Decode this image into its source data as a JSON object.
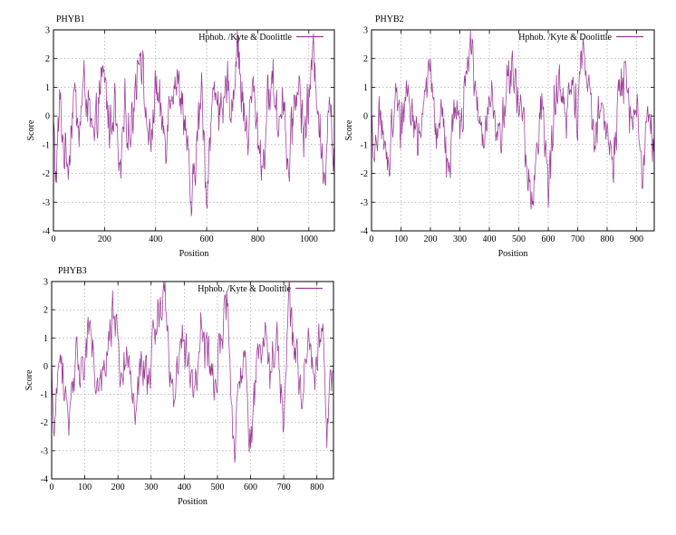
{
  "chart_data": [
    {
      "type": "line",
      "title": "PHYB1",
      "xlabel": "Position",
      "ylabel": "Score",
      "xlim": [
        0,
        1100
      ],
      "ylim": [
        -4,
        3
      ],
      "xticks": [
        0,
        200,
        400,
        600,
        800,
        1000
      ],
      "yticks": [
        -4,
        -3,
        -2,
        -1,
        0,
        1,
        2,
        3
      ],
      "grid": true,
      "legend_position": "top-right",
      "color": "#9b3a96",
      "series": [
        {
          "name": "Hphob. /Kyte & Doolittle",
          "length": 1100,
          "points": [
            [
              0,
              -0.3
            ],
            [
              10,
              -2.2
            ],
            [
              25,
              0.6
            ],
            [
              40,
              -1.2
            ],
            [
              60,
              -1.6
            ],
            [
              80,
              0.9
            ],
            [
              100,
              -0.6
            ],
            [
              120,
              1.2
            ],
            [
              140,
              0.1
            ],
            [
              160,
              -1.0
            ],
            [
              180,
              0.8
            ],
            [
              200,
              1.4
            ],
            [
              220,
              -0.5
            ],
            [
              240,
              0.5
            ],
            [
              260,
              -2.3
            ],
            [
              280,
              0.3
            ],
            [
              300,
              -0.8
            ],
            [
              320,
              1.0
            ],
            [
              340,
              2.6
            ],
            [
              360,
              0.2
            ],
            [
              380,
              -1.2
            ],
            [
              400,
              1.1
            ],
            [
              420,
              0.0
            ],
            [
              440,
              -0.8
            ],
            [
              460,
              1.0
            ],
            [
              480,
              1.2
            ],
            [
              500,
              0.7
            ],
            [
              520,
              -0.6
            ],
            [
              540,
              -3.3
            ],
            [
              560,
              -1.1
            ],
            [
              580,
              0.9
            ],
            [
              600,
              -2.9
            ],
            [
              620,
              0.4
            ],
            [
              640,
              1.0
            ],
            [
              660,
              -0.4
            ],
            [
              680,
              1.2
            ],
            [
              700,
              0.2
            ],
            [
              720,
              2.7
            ],
            [
              740,
              0.5
            ],
            [
              760,
              -0.8
            ],
            [
              780,
              1.1
            ],
            [
              800,
              -0.6
            ],
            [
              820,
              -1.9
            ],
            [
              840,
              0.6
            ],
            [
              860,
              1.3
            ],
            [
              880,
              -0.4
            ],
            [
              900,
              0.9
            ],
            [
              920,
              -2.2
            ],
            [
              940,
              0.3
            ],
            [
              960,
              1.2
            ],
            [
              980,
              -0.7
            ],
            [
              1000,
              0.6
            ],
            [
              1020,
              2.3
            ],
            [
              1040,
              -0.2
            ],
            [
              1060,
              -2.5
            ],
            [
              1080,
              1.1
            ],
            [
              1095,
              -1.3
            ]
          ]
        }
      ]
    },
    {
      "type": "line",
      "title": "PHYB2",
      "xlabel": "Position",
      "ylabel": "Score",
      "xlim": [
        0,
        960
      ],
      "ylim": [
        -4,
        3
      ],
      "xticks": [
        0,
        100,
        200,
        300,
        400,
        500,
        600,
        700,
        800,
        900
      ],
      "yticks": [
        -4,
        -3,
        -2,
        -1,
        0,
        1,
        2,
        3
      ],
      "grid": true,
      "legend_position": "top-right",
      "color": "#9b3a96",
      "series": [
        {
          "name": "Hphob. /Kyte & Doolittle",
          "length": 960,
          "points": [
            [
              0,
              -0.4
            ],
            [
              10,
              -2.2
            ],
            [
              25,
              0.6
            ],
            [
              40,
              -1.1
            ],
            [
              60,
              -1.6
            ],
            [
              80,
              0.9
            ],
            [
              100,
              -0.5
            ],
            [
              120,
              1.2
            ],
            [
              140,
              0.1
            ],
            [
              160,
              -1.0
            ],
            [
              180,
              0.8
            ],
            [
              200,
              1.4
            ],
            [
              220,
              -0.6
            ],
            [
              240,
              0.4
            ],
            [
              260,
              -2.3
            ],
            [
              280,
              0.3
            ],
            [
              300,
              -0.7
            ],
            [
              320,
              1.1
            ],
            [
              340,
              2.7
            ],
            [
              360,
              0.1
            ],
            [
              380,
              -1.2
            ],
            [
              400,
              1.0
            ],
            [
              420,
              0.0
            ],
            [
              440,
              -0.9
            ],
            [
              460,
              1.1
            ],
            [
              480,
              1.4
            ],
            [
              500,
              0.6
            ],
            [
              520,
              -0.7
            ],
            [
              545,
              -3.3
            ],
            [
              565,
              -1.0
            ],
            [
              580,
              0.9
            ],
            [
              600,
              -2.9
            ],
            [
              620,
              0.5
            ],
            [
              640,
              1.1
            ],
            [
              660,
              -0.3
            ],
            [
              680,
              1.2
            ],
            [
              700,
              0.1
            ],
            [
              720,
              2.6
            ],
            [
              740,
              0.4
            ],
            [
              760,
              -0.9
            ],
            [
              780,
              1.2
            ],
            [
              800,
              -0.5
            ],
            [
              820,
              -1.8
            ],
            [
              840,
              0.7
            ],
            [
              860,
              1.4
            ],
            [
              880,
              -0.4
            ],
            [
              900,
              0.8
            ],
            [
              920,
              -2.2
            ],
            [
              940,
              0.3
            ],
            [
              955,
              -1.1
            ]
          ]
        }
      ]
    },
    {
      "type": "line",
      "title": "PHYB3",
      "xlabel": "Position",
      "ylabel": "Score",
      "xlim": [
        0,
        850
      ],
      "ylim": [
        -4,
        3
      ],
      "xticks": [
        0,
        100,
        200,
        300,
        400,
        500,
        600,
        700,
        800
      ],
      "yticks": [
        -4,
        -3,
        -2,
        -1,
        0,
        1,
        2,
        3
      ],
      "grid": true,
      "legend_position": "top-right",
      "color": "#9b3a96",
      "series": [
        {
          "name": "Hphob. /Kyte & Doolittle",
          "length": 850,
          "points": [
            [
              0,
              -0.2
            ],
            [
              10,
              -2.3
            ],
            [
              25,
              0.5
            ],
            [
              40,
              -1.1
            ],
            [
              55,
              -1.9
            ],
            [
              75,
              0.9
            ],
            [
              95,
              -0.5
            ],
            [
              110,
              1.4
            ],
            [
              130,
              0.0
            ],
            [
              150,
              -1.1
            ],
            [
              170,
              0.8
            ],
            [
              190,
              2.2
            ],
            [
              210,
              -0.4
            ],
            [
              230,
              0.4
            ],
            [
              250,
              -2.3
            ],
            [
              270,
              0.4
            ],
            [
              290,
              -0.7
            ],
            [
              310,
              1.2
            ],
            [
              340,
              2.8
            ],
            [
              355,
              0.3
            ],
            [
              370,
              -1.3
            ],
            [
              390,
              1.1
            ],
            [
              410,
              0.0
            ],
            [
              430,
              -0.8
            ],
            [
              450,
              1.2
            ],
            [
              470,
              0.3
            ],
            [
              490,
              -0.7
            ],
            [
              510,
              0.9
            ],
            [
              530,
              2.2
            ],
            [
              550,
              -3.2
            ],
            [
              565,
              -1.2
            ],
            [
              580,
              0.9
            ],
            [
              600,
              -3.0
            ],
            [
              620,
              0.4
            ],
            [
              640,
              1.0
            ],
            [
              660,
              -0.3
            ],
            [
              680,
              1.3
            ],
            [
              700,
              -2.3
            ],
            [
              715,
              2.6
            ],
            [
              735,
              0.4
            ],
            [
              755,
              -0.8
            ],
            [
              775,
              1.1
            ],
            [
              795,
              -0.5
            ],
            [
              815,
              1.8
            ],
            [
              830,
              -2.1
            ],
            [
              845,
              -0.4
            ]
          ]
        }
      ]
    }
  ]
}
